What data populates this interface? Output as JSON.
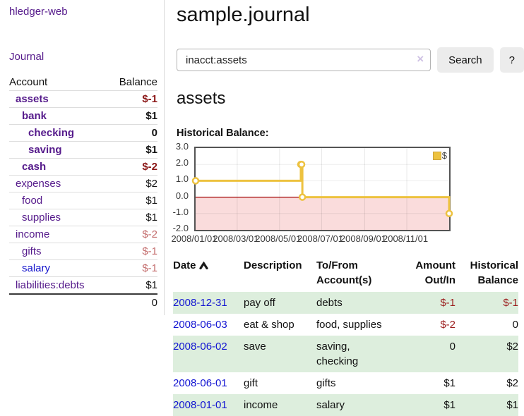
{
  "colors": {
    "link_purple": "#551a8b",
    "link_blue": "#1414cc",
    "negative_dark": "#8b1717",
    "negative_light": "#c36b6b",
    "table_negative": "#9b1c1c",
    "row_stripe_green": "#ddeedd",
    "series_yellow": "#edc240",
    "negative_region_pink": "#fadcdc",
    "zero_line_red": "#a00000"
  },
  "sidebar": {
    "brand": "hledger-web",
    "nav": {
      "journal": "Journal"
    },
    "table": {
      "account_header": "Account",
      "balance_header": "Balance",
      "rows": [
        {
          "name": "assets",
          "balance": "$-1",
          "indent": 1,
          "bold": true,
          "neg": "dark",
          "link": "purple"
        },
        {
          "name": "bank",
          "balance": "$1",
          "indent": 2,
          "bold": true,
          "neg": null,
          "link": "purple"
        },
        {
          "name": "checking",
          "balance": "0",
          "indent": 3,
          "bold": true,
          "neg": null,
          "link": "purple"
        },
        {
          "name": "saving",
          "balance": "$1",
          "indent": 3,
          "bold": true,
          "neg": null,
          "link": "purple"
        },
        {
          "name": "cash",
          "balance": "$-2",
          "indent": 2,
          "bold": true,
          "neg": "dark",
          "link": "purple"
        },
        {
          "name": "expenses",
          "balance": "$2",
          "indent": 1,
          "bold": false,
          "neg": null,
          "link": "purple"
        },
        {
          "name": "food",
          "balance": "$1",
          "indent": 2,
          "bold": false,
          "neg": null,
          "link": "purple"
        },
        {
          "name": "supplies",
          "balance": "$1",
          "indent": 2,
          "bold": false,
          "neg": null,
          "link": "purple"
        },
        {
          "name": "income",
          "balance": "$-2",
          "indent": 1,
          "bold": false,
          "neg": "light",
          "link": "purple"
        },
        {
          "name": "gifts",
          "balance": "$-1",
          "indent": 2,
          "bold": false,
          "neg": "light",
          "link": "purple"
        },
        {
          "name": "salary",
          "balance": "$-1",
          "indent": 2,
          "bold": false,
          "neg": "light",
          "link": "blue"
        },
        {
          "name": "liabilities:debts",
          "balance": "$1",
          "indent": 1,
          "bold": false,
          "neg": null,
          "link": "purple"
        }
      ],
      "total": "0"
    }
  },
  "main": {
    "title": "sample.journal",
    "search": {
      "value": "inacct:assets",
      "clear_icon": "×",
      "search_button": "Search",
      "help_button": "?"
    },
    "account_heading": "assets",
    "chart_title": "Historical Balance:"
  },
  "chart_data": {
    "type": "line",
    "step": true,
    "title": "Historical Balance:",
    "ylim": [
      -2.0,
      3.0
    ],
    "y_ticks": [
      {
        "label": "3.0",
        "value": 3
      },
      {
        "label": "2.0",
        "value": 2
      },
      {
        "label": "1.0",
        "value": 1
      },
      {
        "label": "0.0",
        "value": 0
      },
      {
        "label": "-1.0",
        "value": -1
      },
      {
        "label": "-2.0",
        "value": -2
      }
    ],
    "x_ticks": [
      {
        "label": "2008/01/01",
        "x": 0.0
      },
      {
        "label": "2008/03/01",
        "x": 0.164
      },
      {
        "label": "2008/05/01",
        "x": 0.331
      },
      {
        "label": "2008/07/01",
        "x": 0.497
      },
      {
        "label": "2008/09/01",
        "x": 0.667
      },
      {
        "label": "2008/11/01",
        "x": 0.833
      }
    ],
    "series": [
      {
        "name": "$",
        "color": "#edc240",
        "points": [
          {
            "date": "2008-01-01",
            "x": 0.0,
            "y": 1
          },
          {
            "date": "2008-06-01",
            "x": 0.415,
            "y": 2
          },
          {
            "date": "2008-06-02",
            "x": 0.418,
            "y": 2
          },
          {
            "date": "2008-06-03",
            "x": 0.421,
            "y": 0
          },
          {
            "date": "2008-12-31",
            "x": 1.0,
            "y": -1
          }
        ]
      }
    ],
    "negative_region": {
      "fill": "#fadcdc",
      "line": "#a00000"
    },
    "legend": {
      "label": "$",
      "position": "top-right"
    },
    "grid": true
  },
  "register": {
    "headers": {
      "date": "Date",
      "description": "Description",
      "tofrom_line1": "To/From",
      "tofrom_line2": "Account(s)",
      "amount_line1": "Amount",
      "amount_line2": "Out/In",
      "historical_line1": "Historical",
      "historical_line2": "Balance"
    },
    "rows": [
      {
        "date": "2008-12-31",
        "description": "pay off",
        "accounts": "debts",
        "amount": "$-1",
        "amount_neg": true,
        "balance": "$-1",
        "balance_neg": true
      },
      {
        "date": "2008-06-03",
        "description": "eat & shop",
        "accounts": "food, supplies",
        "amount": "$-2",
        "amount_neg": true,
        "balance": "0",
        "balance_neg": false
      },
      {
        "date": "2008-06-02",
        "description": "save",
        "accounts": "saving, checking",
        "amount": "0",
        "amount_neg": false,
        "balance": "$2",
        "balance_neg": false
      },
      {
        "date": "2008-06-01",
        "description": "gift",
        "accounts": "gifts",
        "amount": "$1",
        "amount_neg": false,
        "balance": "$2",
        "balance_neg": false
      },
      {
        "date": "2008-01-01",
        "description": "income",
        "accounts": "salary",
        "amount": "$1",
        "amount_neg": false,
        "balance": "$1",
        "balance_neg": false
      }
    ]
  }
}
